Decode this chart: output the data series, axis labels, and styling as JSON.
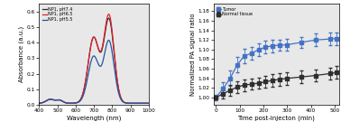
{
  "left_chart": {
    "xlabel": "Wavelength (nm)",
    "ylabel": "Absorbance (a.u.)",
    "xlim": [
      400,
      1000
    ],
    "ylim": [
      0,
      0.65
    ],
    "yticks": [
      0.0,
      0.1,
      0.2,
      0.3,
      0.4,
      0.5,
      0.6
    ],
    "xticks": [
      400,
      500,
      600,
      700,
      800,
      900,
      1000
    ],
    "legend": [
      "NP1, pH7.4",
      "NP1, pH6.5",
      "NP1, pH5.5"
    ],
    "colors": [
      "#2e2e2e",
      "#e8202a",
      "#1f55a5"
    ],
    "background": "#e8e8e8"
  },
  "right_chart": {
    "xlabel": "Time post-injecton (min)",
    "ylabel": "Normalized PA signal ratio",
    "xlim": [
      -10,
      520
    ],
    "ylim": [
      0.985,
      1.195
    ],
    "yticks": [
      1.0,
      1.02,
      1.04,
      1.06,
      1.08,
      1.1,
      1.12,
      1.14,
      1.16,
      1.18
    ],
    "xticks": [
      0,
      100,
      200,
      300,
      400,
      500
    ],
    "legend": [
      "Tumor",
      "Normal tissue"
    ],
    "tumor_color": "#4472c4",
    "normal_color": "#2e2e2e",
    "background": "#e8e8e8",
    "tumor_x": [
      0,
      30,
      60,
      90,
      120,
      150,
      180,
      210,
      240,
      270,
      300,
      360,
      420,
      480,
      510
    ],
    "tumor_y": [
      1.0,
      1.018,
      1.04,
      1.068,
      1.087,
      1.092,
      1.1,
      1.105,
      1.108,
      1.109,
      1.11,
      1.115,
      1.12,
      1.122,
      1.123
    ],
    "tumor_yerr": [
      0.005,
      0.014,
      0.016,
      0.016,
      0.015,
      0.013,
      0.013,
      0.013,
      0.013,
      0.012,
      0.012,
      0.012,
      0.013,
      0.013,
      0.013
    ],
    "normal_x": [
      0,
      30,
      60,
      90,
      120,
      150,
      180,
      210,
      240,
      270,
      300,
      360,
      420,
      480,
      510
    ],
    "normal_y": [
      1.0,
      1.008,
      1.015,
      1.022,
      1.026,
      1.028,
      1.03,
      1.033,
      1.036,
      1.038,
      1.04,
      1.043,
      1.046,
      1.05,
      1.052
    ],
    "normal_yerr": [
      0.004,
      0.01,
      0.011,
      0.012,
      0.012,
      0.011,
      0.011,
      0.012,
      0.013,
      0.013,
      0.013,
      0.013,
      0.013,
      0.013,
      0.013
    ]
  }
}
